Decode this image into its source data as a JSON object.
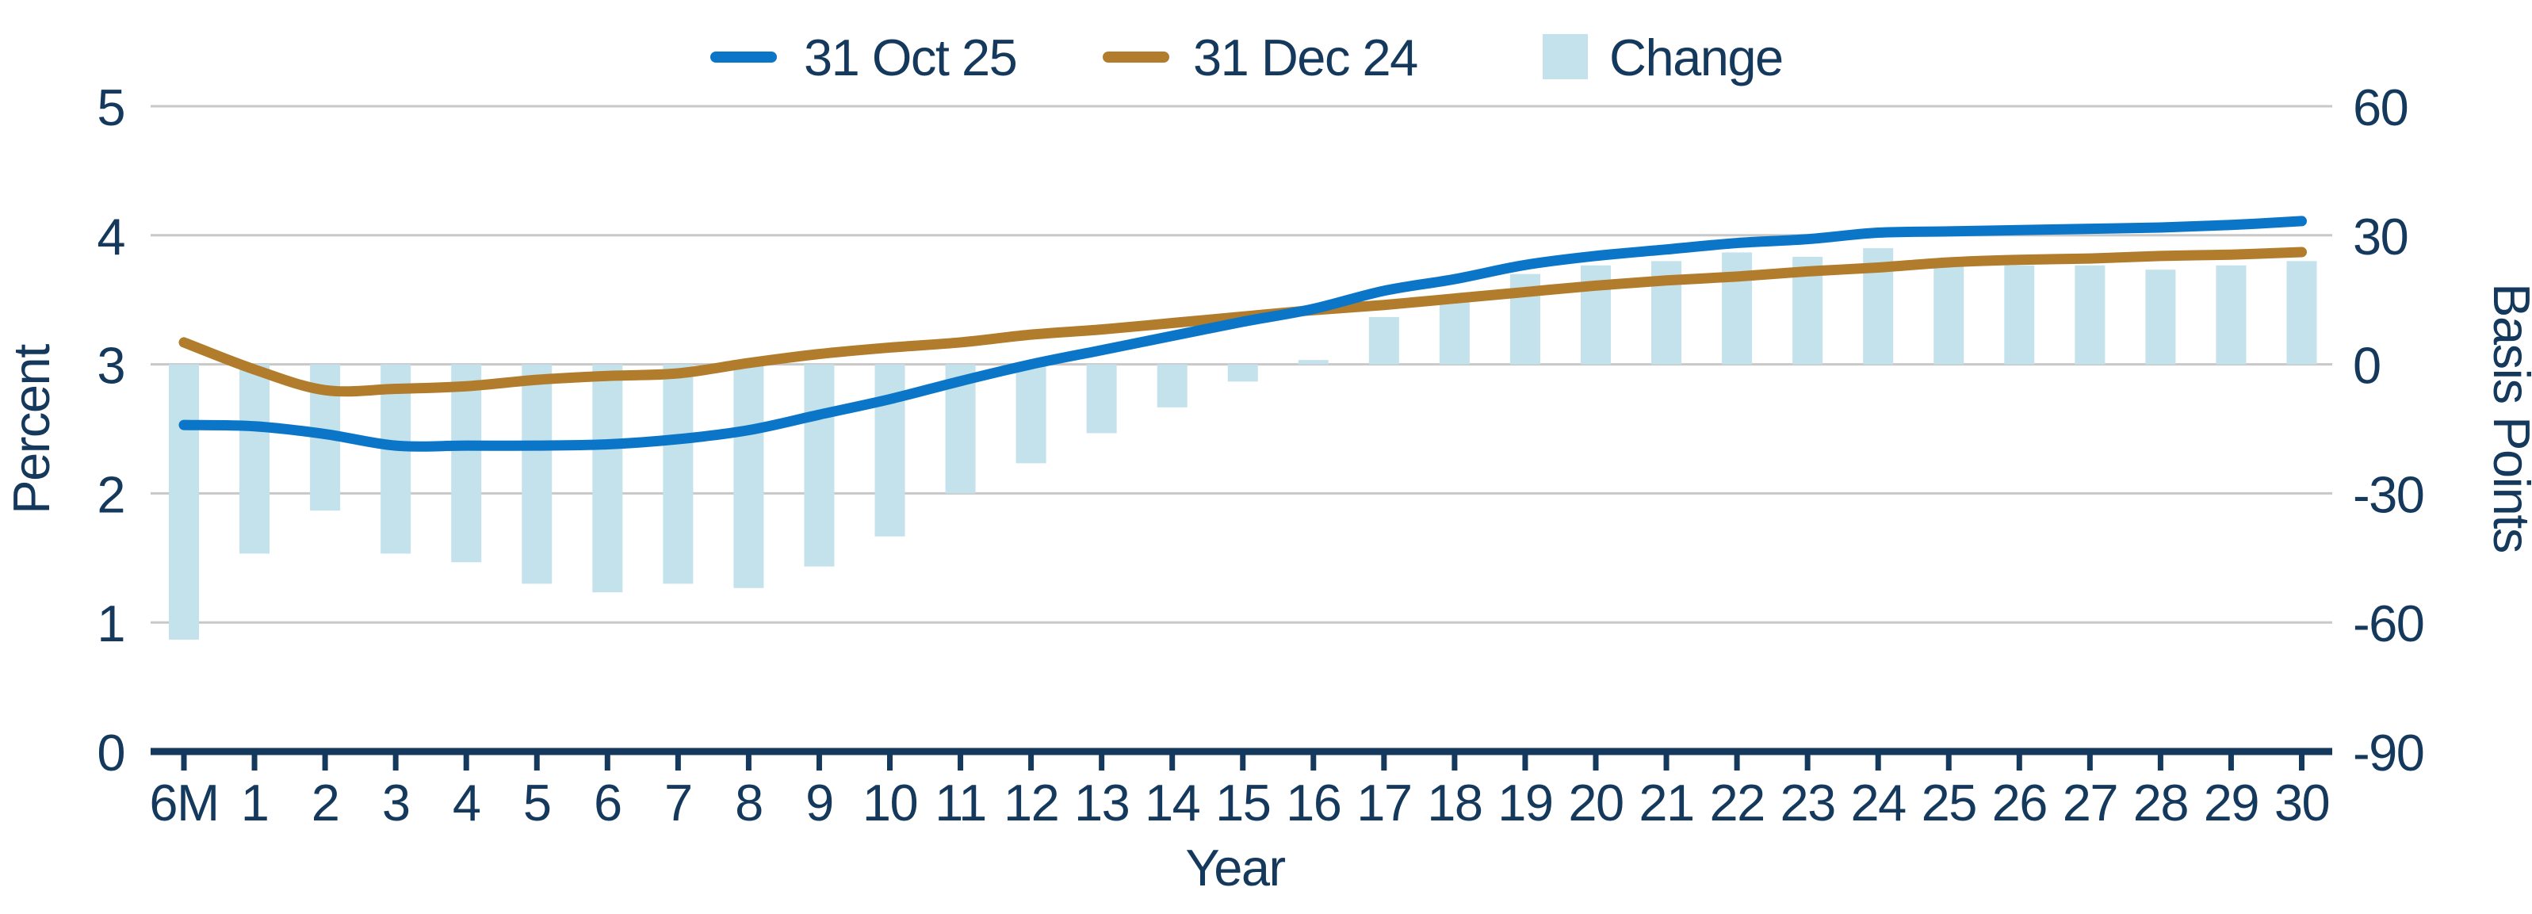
{
  "colors": {
    "navy_text": "#14395C",
    "gridline": "#C8C8C8",
    "line_oct": "#0B76C8",
    "line_dec": "#B27C2D",
    "bar_change": "#C3E2EC",
    "background": "#FFFFFF"
  },
  "chart_data": {
    "type": "combo: line (left axis, Percent) + bar (right axis, Basis Points)",
    "title": "",
    "xlabel": "Year",
    "categories": [
      "6M",
      "1",
      "2",
      "3",
      "4",
      "5",
      "6",
      "7",
      "8",
      "9",
      "10",
      "11",
      "12",
      "13",
      "14",
      "15",
      "16",
      "17",
      "18",
      "19",
      "20",
      "21",
      "22",
      "23",
      "24",
      "25",
      "26",
      "27",
      "28",
      "29",
      "30"
    ],
    "left_axis": {
      "label": "Percent",
      "range": [
        0,
        5
      ],
      "ticks": [
        0,
        1,
        2,
        3,
        4,
        5
      ]
    },
    "right_axis": {
      "label": "Basis Points",
      "range": [
        -90,
        60
      ],
      "ticks": [
        60,
        30,
        0,
        -30,
        -60,
        -90
      ]
    },
    "legend_position": "top",
    "grid": "horizontal",
    "series": [
      {
        "name": "31 Oct 25",
        "type": "line",
        "axis": "left",
        "color": "#0B76C8",
        "values": [
          2.53,
          2.52,
          2.46,
          2.37,
          2.37,
          2.37,
          2.38,
          2.42,
          2.49,
          2.61,
          2.73,
          2.87,
          3.0,
          3.11,
          3.22,
          3.33,
          3.43,
          3.57,
          3.66,
          3.77,
          3.84,
          3.89,
          3.94,
          3.97,
          4.02,
          4.03,
          4.04,
          4.05,
          4.06,
          4.08,
          4.11
        ]
      },
      {
        "name": "31 Dec 24",
        "type": "line",
        "axis": "left",
        "color": "#B27C2D",
        "values": [
          3.17,
          2.96,
          2.8,
          2.81,
          2.83,
          2.88,
          2.91,
          2.93,
          3.01,
          3.08,
          3.13,
          3.17,
          3.23,
          3.27,
          3.32,
          3.37,
          3.42,
          3.46,
          3.51,
          3.56,
          3.61,
          3.65,
          3.68,
          3.72,
          3.75,
          3.79,
          3.81,
          3.82,
          3.84,
          3.85,
          3.87
        ]
      },
      {
        "name": "Change",
        "type": "bar",
        "axis": "right",
        "unit": "bp",
        "color": "#C3E2EC",
        "values": [
          -64,
          -44,
          -34,
          -44,
          -46,
          -51,
          -53,
          -51,
          -52,
          -47,
          -40,
          -30,
          -23,
          -16,
          -10,
          -4,
          1,
          11,
          15,
          21,
          23,
          24,
          26,
          25,
          27,
          24,
          23,
          23,
          22,
          23,
          24
        ]
      }
    ]
  }
}
